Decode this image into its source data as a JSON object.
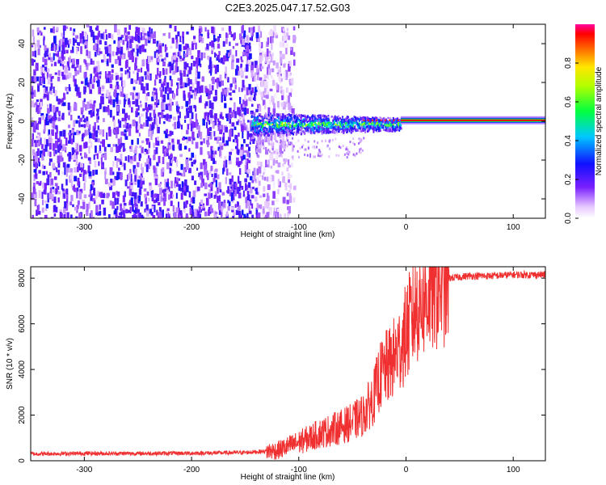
{
  "title": "C2E3.2025.047.17.52.G03",
  "chart_data": [
    {
      "type": "heatmap",
      "xlabel": "Height of straight line (km)",
      "ylabel": "Frequency (Hz)",
      "xlim": [
        -350,
        130
      ],
      "ylim": [
        -50,
        50
      ],
      "xticks": [
        "-300",
        "-200",
        "-100",
        "0",
        "100"
      ],
      "yticks": [
        "-40",
        "-20",
        "0",
        "20",
        "40"
      ],
      "colorbar": {
        "label": "Normalized spectral amplitude",
        "ticks": [
          "0.0",
          "0.2",
          "0.4",
          "0.6",
          "0.8"
        ],
        "range": [
          0,
          1
        ]
      },
      "regions": [
        {
          "name": "noise",
          "x_range": [
            -350,
            -125
          ],
          "y_range": [
            -50,
            50
          ],
          "amplitude": 0.15
        },
        {
          "name": "emerging signal",
          "x_range": [
            -145,
            -5
          ],
          "y_range": [
            -8,
            6
          ],
          "amplitude": 0.45
        },
        {
          "name": "carrier line",
          "x_range": [
            -5,
            130
          ],
          "y_center": 0.5,
          "amplitude": 0.95
        }
      ]
    },
    {
      "type": "line",
      "xlabel": "Height of straight line (km)",
      "ylabel": "SNR (10 * v/v)",
      "xlim": [
        -350,
        130
      ],
      "ylim": [
        0,
        8500
      ],
      "xticks": [
        "-300",
        "-200",
        "-100",
        "0",
        "100"
      ],
      "yticks": [
        "0",
        "2000",
        "4000",
        "6000",
        "8000"
      ],
      "color": "#f03030",
      "series": [
        {
          "x": [
            -350,
            -300,
            -250,
            -200,
            -150,
            -120,
            -100,
            -80,
            -60,
            -50,
            -40,
            -30,
            -25,
            -20,
            -15,
            -10,
            -5,
            0,
            5,
            10,
            20,
            30,
            40,
            60,
            80,
            100,
            130
          ],
          "y": [
            300,
            320,
            320,
            330,
            360,
            450,
            800,
            1200,
            1500,
            1700,
            2000,
            2800,
            3600,
            4000,
            4200,
            4600,
            5000,
            5600,
            6200,
            6800,
            7300,
            7800,
            8000,
            8100,
            8100,
            8150,
            8150
          ]
        }
      ]
    }
  ]
}
